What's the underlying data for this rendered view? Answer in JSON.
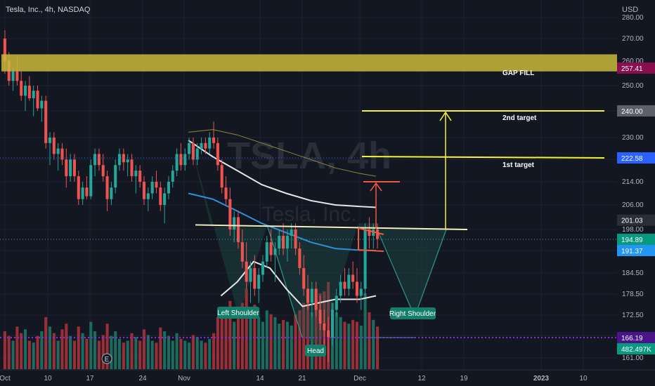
{
  "header": {
    "symbol_title": "Tesla, Inc., 4h, NASDAQ"
  },
  "watermark": {
    "ticker": "TSLA, 4h",
    "name": "Tesla, Inc."
  },
  "colors": {
    "background": "#131722",
    "up": "#26a69a",
    "down": "#ef5350",
    "gap_zone": "#c9b93a",
    "target_line": "#f5f23a",
    "neckline": "#f3f0c0",
    "arrow_red": "#f0593e",
    "ma_blue": "#2f8fd8",
    "ma_white": "#e6e6e6",
    "ma_olive": "#8e8a3a",
    "pattern_fill": "#1f5b50",
    "volume_up": "#1b6b5e",
    "volume_down": "#9a2f38",
    "dotted_purple": "#8a2be2"
  },
  "chart_data": {
    "type": "candlestick",
    "title": "Tesla, Inc., 4h, NASDAQ",
    "currency": "USD",
    "y_ticks": [
      161.0,
      166.5,
      172.5,
      178.5,
      184.5,
      191.37,
      198.0,
      206.0,
      214.0,
      222.0,
      230.0,
      240.0,
      250.0,
      260.0,
      270.0,
      280.0
    ],
    "y_tick_labels": [
      "161.00",
      "166.50",
      "172.50",
      "178.50",
      "184.50",
      "",
      "198.00",
      "206.00",
      "214.00",
      "222.00",
      "230.00",
      "",
      "250.00",
      "260.00",
      "270.00",
      "280.00"
    ],
    "x_ticks": [
      "Oct",
      "10",
      "17",
      "24",
      "Nov",
      "14",
      "21",
      "Dec",
      "12",
      "19",
      "2023",
      "10"
    ],
    "price_tags": [
      {
        "label": "257.41",
        "value": 257.41,
        "color": "#880e4f"
      },
      {
        "label": "240.00",
        "value": 240.0,
        "color": "#5d606b"
      },
      {
        "label": "222.58",
        "value": 222.58,
        "color": "#2962ff"
      },
      {
        "label": "201.03",
        "value": 201.03,
        "color": "#2a2e39"
      },
      {
        "label": "194.89",
        "value": 194.89,
        "color": "#089981"
      },
      {
        "label": "191.37",
        "value": 191.37,
        "color": "#2196f3"
      },
      {
        "label": "166.19",
        "value": 166.19,
        "color": "#4a148c"
      },
      {
        "label": "482.497K",
        "value": 163.2,
        "color": "#089981"
      }
    ],
    "levels": {
      "gap_zone": [
        256.0,
        263.0
      ],
      "second_target": 240.0,
      "first_target": 222.58,
      "neckline": [
        199.5,
        198.0
      ],
      "current_price": 194.89,
      "volume_dotted": 166.19
    },
    "annotations": {
      "gap_fill": "GAP FILL",
      "second_target": "2nd target",
      "first_target": "1st target",
      "left_shoulder": "Left Shoulder",
      "head": "Head",
      "right_shoulder": "Right Shoulder"
    },
    "candles": [
      [
        270,
        274,
        255,
        260
      ],
      [
        260,
        264,
        250,
        252
      ],
      [
        252,
        258,
        248,
        256
      ],
      [
        256,
        262,
        250,
        252
      ],
      [
        252,
        256,
        244,
        246
      ],
      [
        246,
        252,
        240,
        250
      ],
      [
        250,
        254,
        244,
        245
      ],
      [
        245,
        250,
        238,
        248
      ],
      [
        248,
        250,
        240,
        241
      ],
      [
        241,
        246,
        236,
        244
      ],
      [
        244,
        246,
        226,
        228
      ],
      [
        228,
        232,
        220,
        230
      ],
      [
        230,
        232,
        222,
        224
      ],
      [
        224,
        228,
        218,
        226
      ],
      [
        226,
        228,
        220,
        222
      ],
      [
        222,
        226,
        212,
        216
      ],
      [
        216,
        224,
        214,
        222
      ],
      [
        222,
        224,
        214,
        216
      ],
      [
        216,
        218,
        206,
        208
      ],
      [
        208,
        214,
        206,
        212
      ],
      [
        212,
        216,
        208,
        209
      ],
      [
        209,
        222,
        208,
        220
      ],
      [
        220,
        226,
        216,
        224
      ],
      [
        224,
        226,
        218,
        220
      ],
      [
        220,
        224,
        214,
        216
      ],
      [
        216,
        218,
        204,
        208
      ],
      [
        208,
        214,
        206,
        212
      ],
      [
        212,
        222,
        210,
        220
      ],
      [
        220,
        226,
        218,
        224
      ],
      [
        224,
        226,
        218,
        221
      ],
      [
        221,
        224,
        216,
        222
      ],
      [
        222,
        224,
        214,
        216
      ],
      [
        216,
        220,
        210,
        218
      ],
      [
        218,
        220,
        212,
        214
      ],
      [
        214,
        216,
        206,
        208
      ],
      [
        208,
        212,
        204,
        210
      ],
      [
        210,
        216,
        208,
        214
      ],
      [
        214,
        218,
        210,
        212
      ],
      [
        212,
        214,
        204,
        206
      ],
      [
        206,
        212,
        200,
        210
      ],
      [
        210,
        216,
        208,
        214
      ],
      [
        214,
        220,
        212,
        218
      ],
      [
        218,
        226,
        216,
        224
      ],
      [
        224,
        228,
        218,
        220
      ],
      [
        220,
        226,
        218,
        224
      ],
      [
        224,
        230,
        222,
        228
      ],
      [
        228,
        230,
        220,
        222
      ],
      [
        222,
        228,
        220,
        226
      ],
      [
        226,
        230,
        224,
        228
      ],
      [
        228,
        230,
        224,
        226
      ],
      [
        226,
        232,
        224,
        230
      ],
      [
        230,
        236,
        226,
        228
      ],
      [
        228,
        230,
        218,
        220
      ],
      [
        220,
        222,
        210,
        212
      ],
      [
        212,
        216,
        206,
        208
      ],
      [
        208,
        212,
        196,
        198
      ],
      [
        198,
        204,
        194,
        202
      ],
      [
        202,
        204,
        192,
        194
      ],
      [
        194,
        198,
        186,
        188
      ],
      [
        188,
        194,
        180,
        182
      ],
      [
        182,
        188,
        176,
        186
      ],
      [
        186,
        190,
        178,
        180
      ],
      [
        180,
        186,
        176,
        184
      ],
      [
        184,
        190,
        182,
        188
      ],
      [
        188,
        196,
        186,
        194
      ],
      [
        194,
        198,
        188,
        190
      ],
      [
        190,
        194,
        182,
        192
      ],
      [
        192,
        198,
        190,
        196
      ],
      [
        196,
        200,
        190,
        192
      ],
      [
        192,
        198,
        188,
        196
      ],
      [
        196,
        200,
        192,
        198
      ],
      [
        198,
        200,
        190,
        192
      ],
      [
        192,
        194,
        184,
        186
      ],
      [
        186,
        190,
        178,
        180
      ],
      [
        180,
        184,
        174,
        176
      ],
      [
        176,
        182,
        172,
        180
      ],
      [
        180,
        182,
        172,
        174
      ],
      [
        174,
        178,
        168,
        170
      ],
      [
        170,
        174,
        164,
        168
      ],
      [
        168,
        172,
        160,
        166
      ],
      [
        166,
        176,
        164,
        174
      ],
      [
        174,
        180,
        172,
        178
      ],
      [
        178,
        184,
        176,
        182
      ],
      [
        182,
        186,
        178,
        180
      ],
      [
        180,
        186,
        178,
        184
      ],
      [
        184,
        188,
        180,
        182
      ],
      [
        182,
        186,
        176,
        178
      ],
      [
        178,
        182,
        174,
        180
      ],
      [
        180,
        200,
        178,
        198
      ],
      [
        198,
        202,
        192,
        196
      ],
      [
        196,
        200,
        192,
        198
      ],
      [
        198,
        200,
        192,
        195
      ]
    ],
    "volume": [
      0.4,
      0.35,
      0.3,
      0.45,
      0.38,
      0.42,
      0.3,
      0.28,
      0.35,
      0.4,
      0.55,
      0.45,
      0.38,
      0.3,
      0.42,
      0.48,
      0.35,
      0.3,
      0.45,
      0.38,
      0.32,
      0.5,
      0.4,
      0.3,
      0.36,
      0.48,
      0.35,
      0.4,
      0.32,
      0.28,
      0.3,
      0.38,
      0.34,
      0.3,
      0.42,
      0.36,
      0.3,
      0.28,
      0.44,
      0.4,
      0.35,
      0.3,
      0.38,
      0.32,
      0.3,
      0.28,
      0.36,
      0.34,
      0.3,
      0.28,
      0.32,
      0.38,
      0.55,
      0.62,
      0.58,
      0.72,
      0.5,
      0.66,
      0.7,
      0.85,
      0.6,
      0.68,
      0.55,
      0.5,
      0.62,
      0.58,
      0.55,
      0.48,
      0.52,
      0.5,
      0.46,
      0.58,
      0.62,
      0.7,
      0.75,
      0.6,
      0.72,
      0.8,
      0.82,
      0.92,
      0.7,
      0.6,
      0.55,
      0.5,
      0.48,
      0.52,
      0.5,
      0.46,
      0.8,
      0.6,
      0.52,
      0.45
    ],
    "ma_blue": [
      [
        0,
        210
      ],
      [
        6,
        208
      ],
      [
        12,
        204
      ],
      [
        18,
        200
      ],
      [
        24,
        197
      ],
      [
        30,
        194
      ],
      [
        36,
        192
      ],
      [
        42,
        191.5
      ],
      [
        46,
        191.37
      ]
    ],
    "ma_white_upper": [
      [
        0,
        229
      ],
      [
        6,
        223
      ],
      [
        12,
        218
      ],
      [
        18,
        213
      ],
      [
        24,
        210
      ],
      [
        30,
        207.5
      ],
      [
        36,
        206
      ],
      [
        42,
        205.5
      ],
      [
        46,
        205.2
      ]
    ],
    "ma_white_lower": [
      [
        8,
        178
      ],
      [
        12,
        182
      ],
      [
        16,
        188
      ],
      [
        20,
        186
      ],
      [
        24,
        180
      ],
      [
        28,
        175
      ],
      [
        32,
        176
      ],
      [
        36,
        177
      ],
      [
        42,
        177
      ],
      [
        46,
        178
      ]
    ],
    "ma_olive_upper": [
      [
        0,
        232
      ],
      [
        6,
        233
      ],
      [
        12,
        231
      ],
      [
        18,
        228
      ],
      [
        24,
        225
      ],
      [
        30,
        222
      ],
      [
        36,
        219
      ],
      [
        42,
        217
      ],
      [
        46,
        216
      ]
    ]
  }
}
